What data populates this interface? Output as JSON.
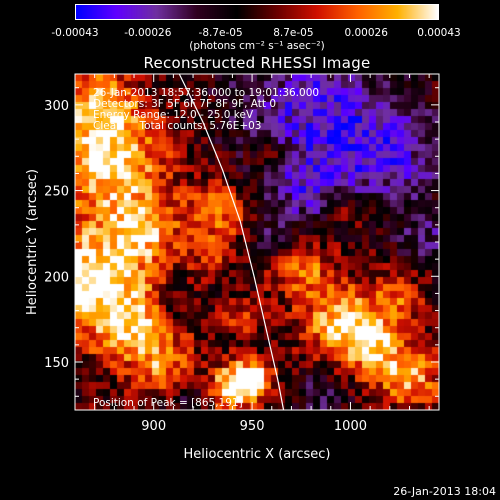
{
  "chart_data": {
    "type": "heatmap",
    "title": "Reconstructed RHESSI Image",
    "xlabel": "Heliocentric X (arcsec)",
    "ylabel": "Heliocentric Y (arcsec)",
    "xlim": [
      860,
      1045
    ],
    "ylim": [
      122,
      318
    ],
    "x_ticks": [
      900,
      950,
      1000
    ],
    "y_ticks": [
      150,
      200,
      250,
      300
    ],
    "colorbar": {
      "ticks": [
        "-0.00043",
        "-0.00026",
        "-8.7e-05",
        "8.7e-05",
        "0.00026",
        "0.00043"
      ],
      "unit_label": "(photons cm⁻² s⁻¹ asec⁻²)",
      "range": [
        -0.00043,
        0.00043
      ],
      "colormap": [
        "#0000ff",
        "#6000ff",
        "#7030a0",
        "#300020",
        "#000000",
        "#6a0000",
        "#d01000",
        "#ff6000",
        "#ffb000",
        "#ffffff"
      ]
    },
    "annotations": {
      "time_range": "26-Jan-2013 18:57:36.000 to 19:01:36.000",
      "detectors": "Detectors: 3F 5F 6F 7F 8F 9F, Att 0",
      "energy_range": "Energy Range: 12.0 - 25.0 keV",
      "clean_counts": "Clean     Total counts: 5.76E+03",
      "peak_position": "Position of Peak = [865,191]"
    },
    "limb_curve": [
      [
        913,
        318
      ],
      [
        925,
        290
      ],
      [
        935,
        262
      ],
      [
        944,
        232
      ],
      [
        951,
        200
      ],
      [
        957,
        170
      ],
      [
        963,
        140
      ],
      [
        966,
        122
      ]
    ],
    "emission_blobs": [
      {
        "x": 868,
        "y": 200,
        "r": 30,
        "level": 1.0
      },
      {
        "x": 878,
        "y": 265,
        "r": 28,
        "level": 0.95
      },
      {
        "x": 872,
        "y": 300,
        "r": 20,
        "level": 0.8
      },
      {
        "x": 895,
        "y": 228,
        "r": 18,
        "level": 0.7
      },
      {
        "x": 890,
        "y": 170,
        "r": 22,
        "level": 0.75
      },
      {
        "x": 905,
        "y": 145,
        "r": 16,
        "level": 0.55
      },
      {
        "x": 935,
        "y": 240,
        "r": 16,
        "level": 0.6
      },
      {
        "x": 930,
        "y": 215,
        "r": 12,
        "level": 0.5
      },
      {
        "x": 940,
        "y": 135,
        "r": 14,
        "level": 0.95
      },
      {
        "x": 950,
        "y": 140,
        "r": 10,
        "level": 0.85
      },
      {
        "x": 975,
        "y": 205,
        "r": 16,
        "level": 0.6
      },
      {
        "x": 995,
        "y": 175,
        "r": 20,
        "level": 0.8
      },
      {
        "x": 1012,
        "y": 160,
        "r": 18,
        "level": 0.75
      },
      {
        "x": 1030,
        "y": 140,
        "r": 16,
        "level": 0.7
      },
      {
        "x": 1025,
        "y": 190,
        "r": 12,
        "level": 0.5
      },
      {
        "x": 960,
        "y": 270,
        "r": 10,
        "level": 0.45
      },
      {
        "x": 1000,
        "y": 240,
        "r": 10,
        "level": 0.4
      },
      {
        "x": 945,
        "y": 175,
        "r": 10,
        "level": 0.45
      }
    ],
    "negative_regions": [
      {
        "x": 980,
        "y": 300,
        "r": 40,
        "level": 1.0
      },
      {
        "x": 1020,
        "y": 270,
        "r": 30,
        "level": 0.9
      },
      {
        "x": 975,
        "y": 250,
        "r": 22,
        "level": 0.7
      },
      {
        "x": 920,
        "y": 130,
        "r": 14,
        "level": 0.6
      },
      {
        "x": 985,
        "y": 130,
        "r": 14,
        "level": 0.6
      },
      {
        "x": 1040,
        "y": 220,
        "r": 16,
        "level": 0.6
      },
      {
        "x": 960,
        "y": 220,
        "r": 12,
        "level": 0.5
      },
      {
        "x": 910,
        "y": 185,
        "r": 10,
        "level": 0.5
      }
    ]
  },
  "footer": {
    "date_stamp": "26-Jan-2013 18:04"
  }
}
